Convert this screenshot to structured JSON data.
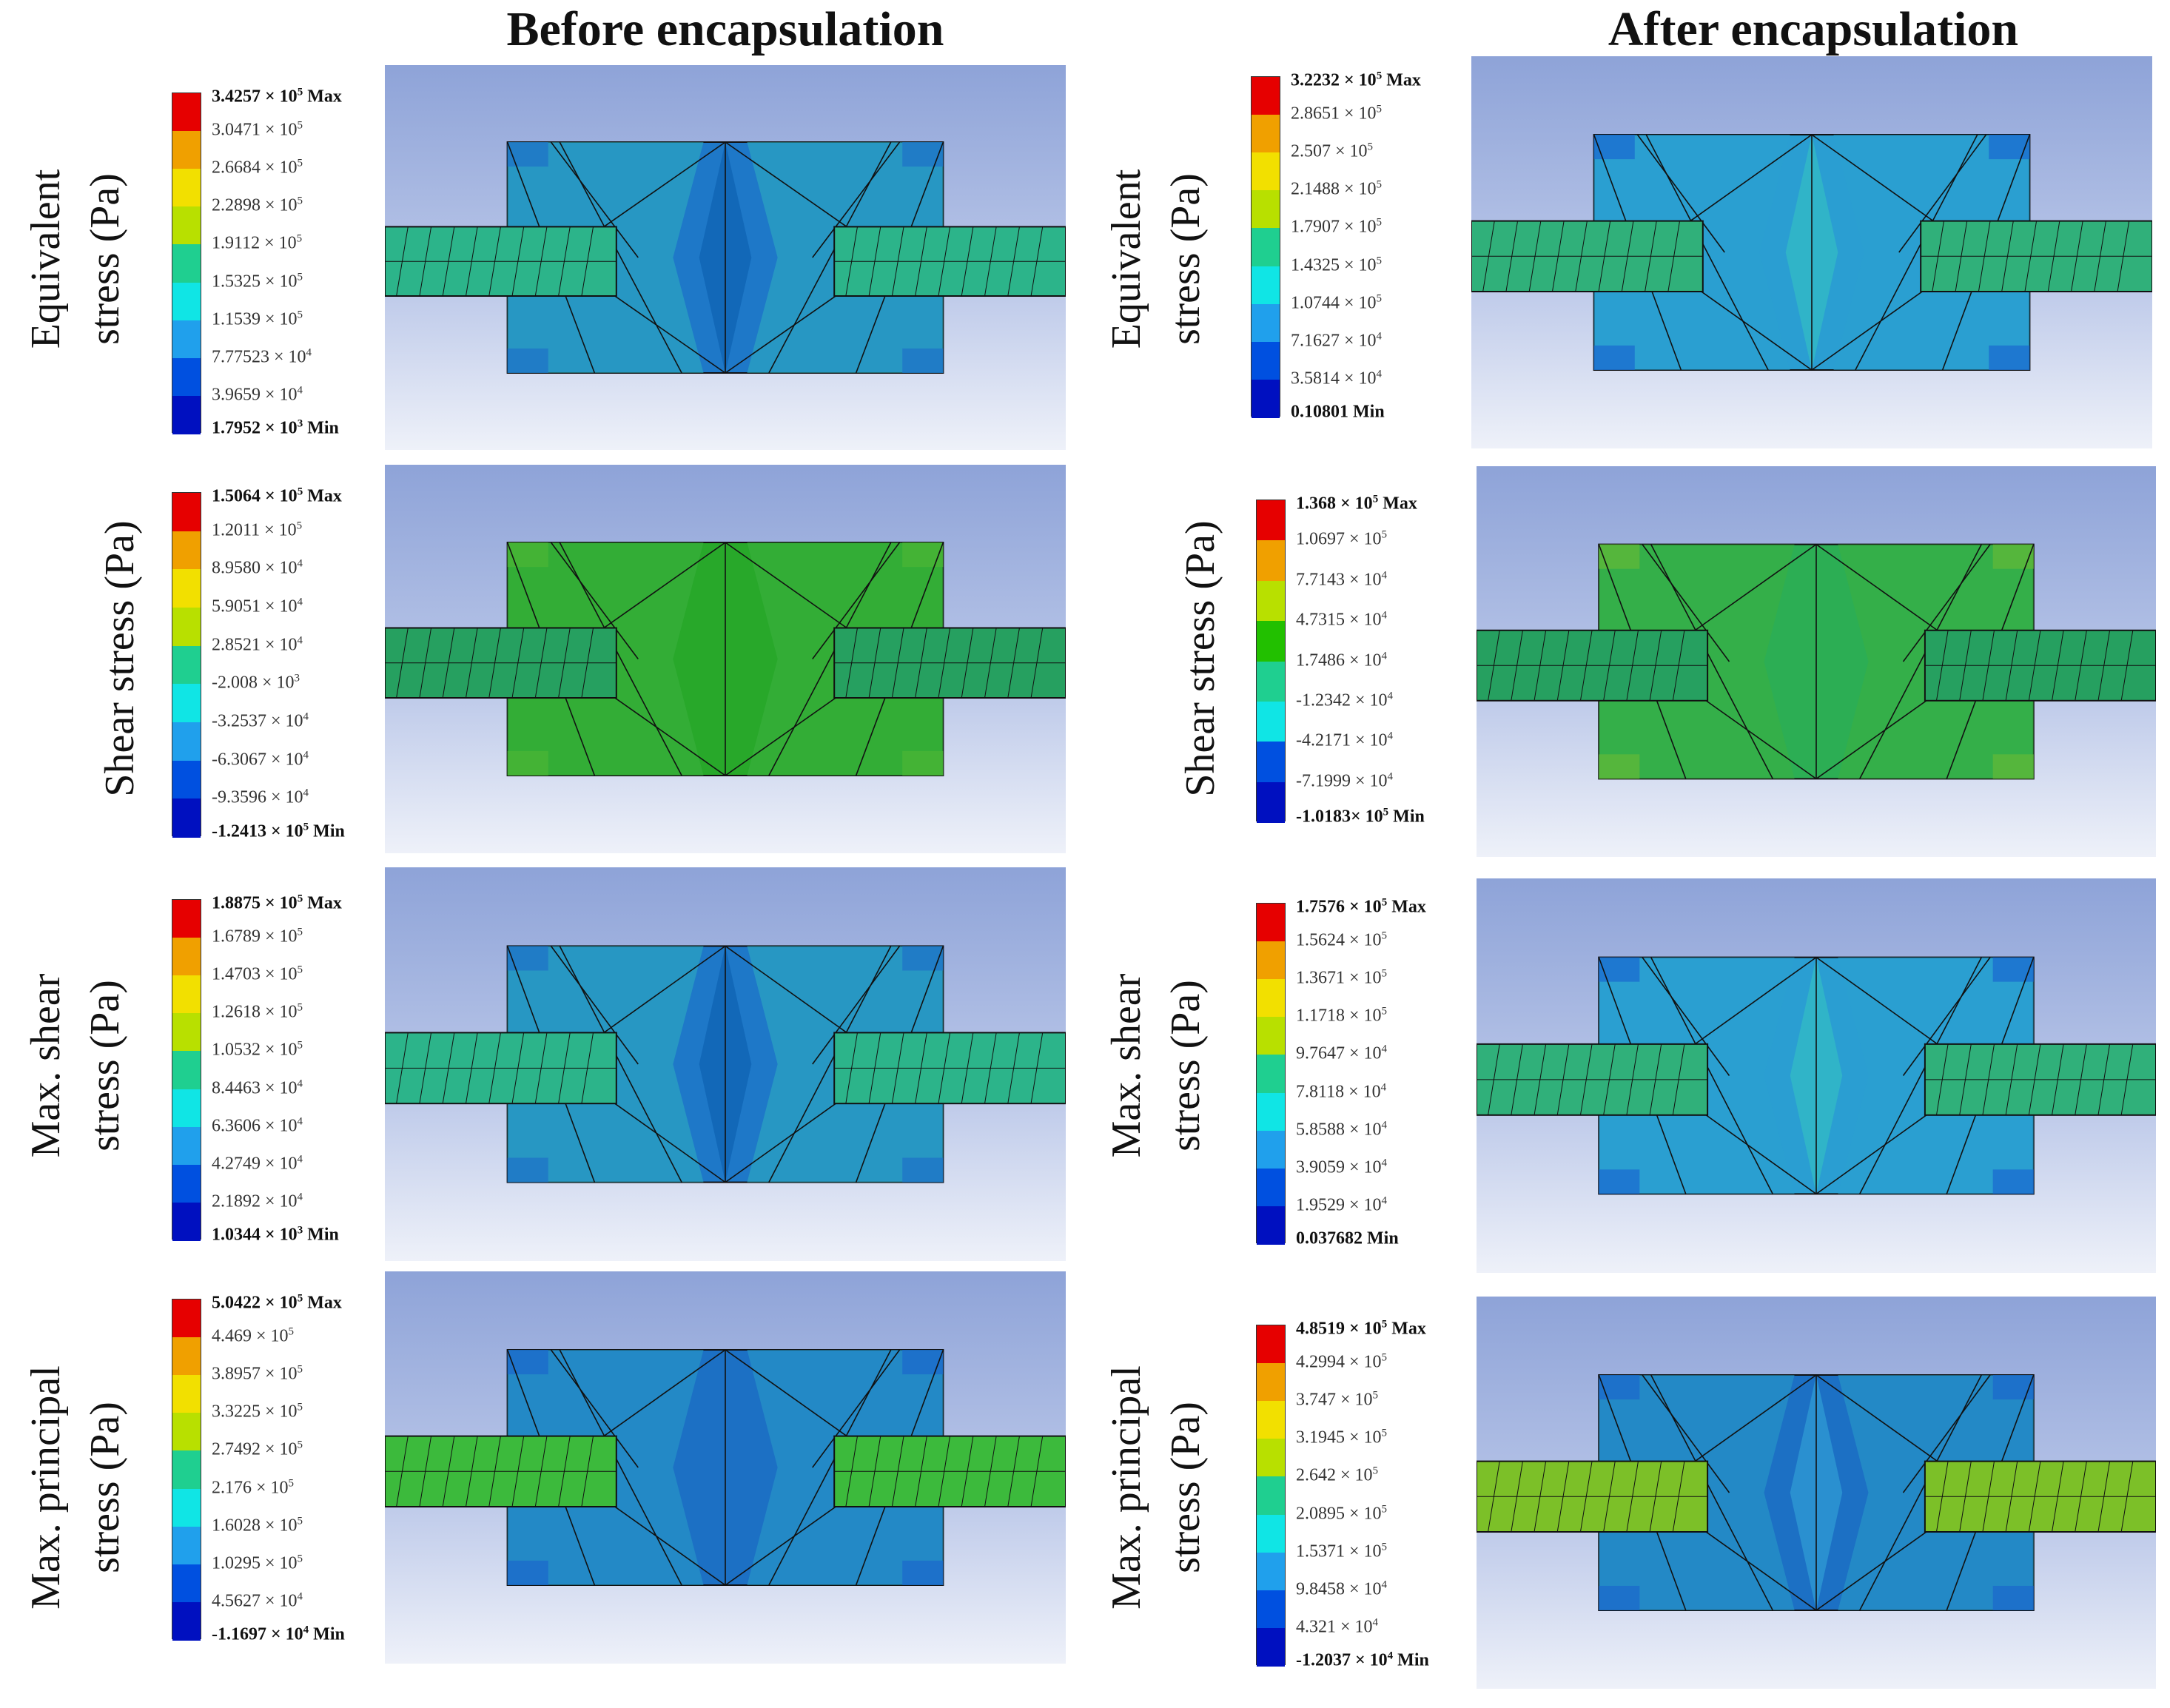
{
  "columns": [
    {
      "title": "Before encapsulation"
    },
    {
      "title": "After encapsulation"
    }
  ],
  "rows": [
    {
      "label_lines": [
        "Equivalent",
        "stress (Pa)"
      ]
    },
    {
      "label_lines": [
        "Shear stress (Pa)"
      ]
    },
    {
      "label_lines": [
        "Max. shear",
        "stress (Pa)"
      ]
    },
    {
      "label_lines": [
        "Max. principal",
        "stress (Pa)"
      ]
    }
  ],
  "legend_colors": [
    "#e60000",
    "#f0a000",
    "#f2e000",
    "#b8e000",
    "#22c000",
    "#1fcf90",
    "#10e5e5",
    "#20a0ec",
    "#0050e0",
    "#0010c0"
  ],
  "legends": {
    "before": [
      [
        "3.4257 × 10^5 Max",
        "3.0471 × 10^5",
        "2.6684 × 10^5",
        "2.2898 × 10^5",
        "1.9112 × 10^5",
        "1.5325 × 10^5",
        "1.1539 × 10^5",
        "7.77523 × 10^4",
        "3.9659 × 10^4",
        "1.7952 × 10^3 Min"
      ],
      [
        "1.5064 × 10^5 Max",
        "1.2011 × 10^5",
        "8.9580 × 10^4",
        "5.9051 × 10^4",
        "2.8521 × 10^4",
        "-2.008 × 10^3",
        "-3.2537 × 10^4",
        "-6.3067 × 10^4",
        "-9.3596 × 10^4",
        "-1.2413 × 10^5 Min"
      ],
      [
        "1.8875 × 10^5 Max",
        "1.6789 × 10^5",
        "1.4703 × 10^5",
        "1.2618 × 10^5",
        "1.0532 × 10^5",
        "8.4463 × 10^4",
        "6.3606 × 10^4",
        "4.2749 × 10^4",
        "2.1892 × 10^4",
        "1.0344 × 10^3 Min"
      ],
      [
        "5.0422 × 10^5 Max",
        "4.469 × 10^5",
        "3.8957 × 10^5",
        "3.3225 × 10^5",
        "2.7492 × 10^5",
        "2.176 × 10^5",
        "1.6028 × 10^5",
        "1.0295 × 10^5",
        "4.5627 × 10^4",
        "-1.1697 × 10^4 Min"
      ]
    ],
    "after": [
      [
        "3.2232 × 10^5 Max",
        "2.8651 × 10^5",
        "2.507 × 10^5",
        "2.1488 × 10^5",
        "1.7907 × 10^5",
        "1.4325 × 10^5",
        "1.0744 × 10^5",
        "7.1627 × 10^4",
        "3.5814 × 10^4",
        "0.10801 Min"
      ],
      [
        "1.368 × 10^5 Max",
        "1.0697 × 10^5",
        "7.7143 × 10^4",
        "4.7315 × 10^4",
        "1.7486 × 10^4",
        "-1.2342 × 10^4",
        "-4.2171 × 10^4",
        "-7.1999 × 10^4",
        "-1.0183× 10^5 Min"
      ],
      [
        "1.7576 × 10^5 Max",
        "1.5624 × 10^5",
        "1.3671 × 10^5",
        "1.1718 × 10^5",
        "9.7647 × 10^4",
        "7.8118 × 10^4",
        "5.8588 × 10^4",
        "3.9059 × 10^4",
        "1.9529 × 10^4",
        "0.037682 Min"
      ],
      [
        "4.8519 × 10^5 Max",
        "4.2994 × 10^5",
        "3.747 × 10^5",
        "3.1945 × 10^5",
        "2.642 × 10^5",
        "2.0895 × 10^5",
        "1.5371 × 10^5",
        "9.8458 × 10^4",
        "4.321 × 10^4",
        "-1.2037 × 10^4 Min"
      ]
    ]
  },
  "contour_fields": {
    "before": [
      {
        "block_color": "#1e78c8",
        "center_color": "#1268b8",
        "side_color": "#2fb0c0",
        "shaft_color": "#2cb48a",
        "corner_color": "#0a2ad0"
      },
      {
        "block_color": "#28a82a",
        "center_color": "#28a82a",
        "side_color": "#3cb040",
        "shaft_color": "#26a060",
        "corner_color": "#5cbc2a"
      },
      {
        "block_color": "#1e78c8",
        "center_color": "#1268b8",
        "side_color": "#2fb0c0",
        "shaft_color": "#2cb48a",
        "corner_color": "#0a2ad0"
      },
      {
        "block_color": "#1c70c4",
        "center_color": "#1c70c4",
        "side_color": "#2a9ec8",
        "shaft_color": "#3cba3c",
        "corner_color": "#0a2ad0"
      }
    ],
    "after": [
      {
        "block_color": "#2a9ed2",
        "center_color": "#30b4c8",
        "side_color": "#2aa0d0",
        "shaft_color": "#30b07a",
        "corner_color": "#0a2ad0"
      },
      {
        "block_color": "#2cae54",
        "center_color": "#2cae54",
        "side_color": "#3cb040",
        "shaft_color": "#26a060",
        "corner_color": "#8cc030"
      },
      {
        "block_color": "#2a9ed2",
        "center_color": "#30b4c8",
        "side_color": "#2aa0d0",
        "shaft_color": "#30b07a",
        "corner_color": "#0a2ad0"
      },
      {
        "block_color": "#1c70c4",
        "center_color": "#2a90d0",
        "side_color": "#2a9ec8",
        "shaft_color": "#7cc028",
        "corner_color": "#0a2ad0"
      }
    ]
  }
}
